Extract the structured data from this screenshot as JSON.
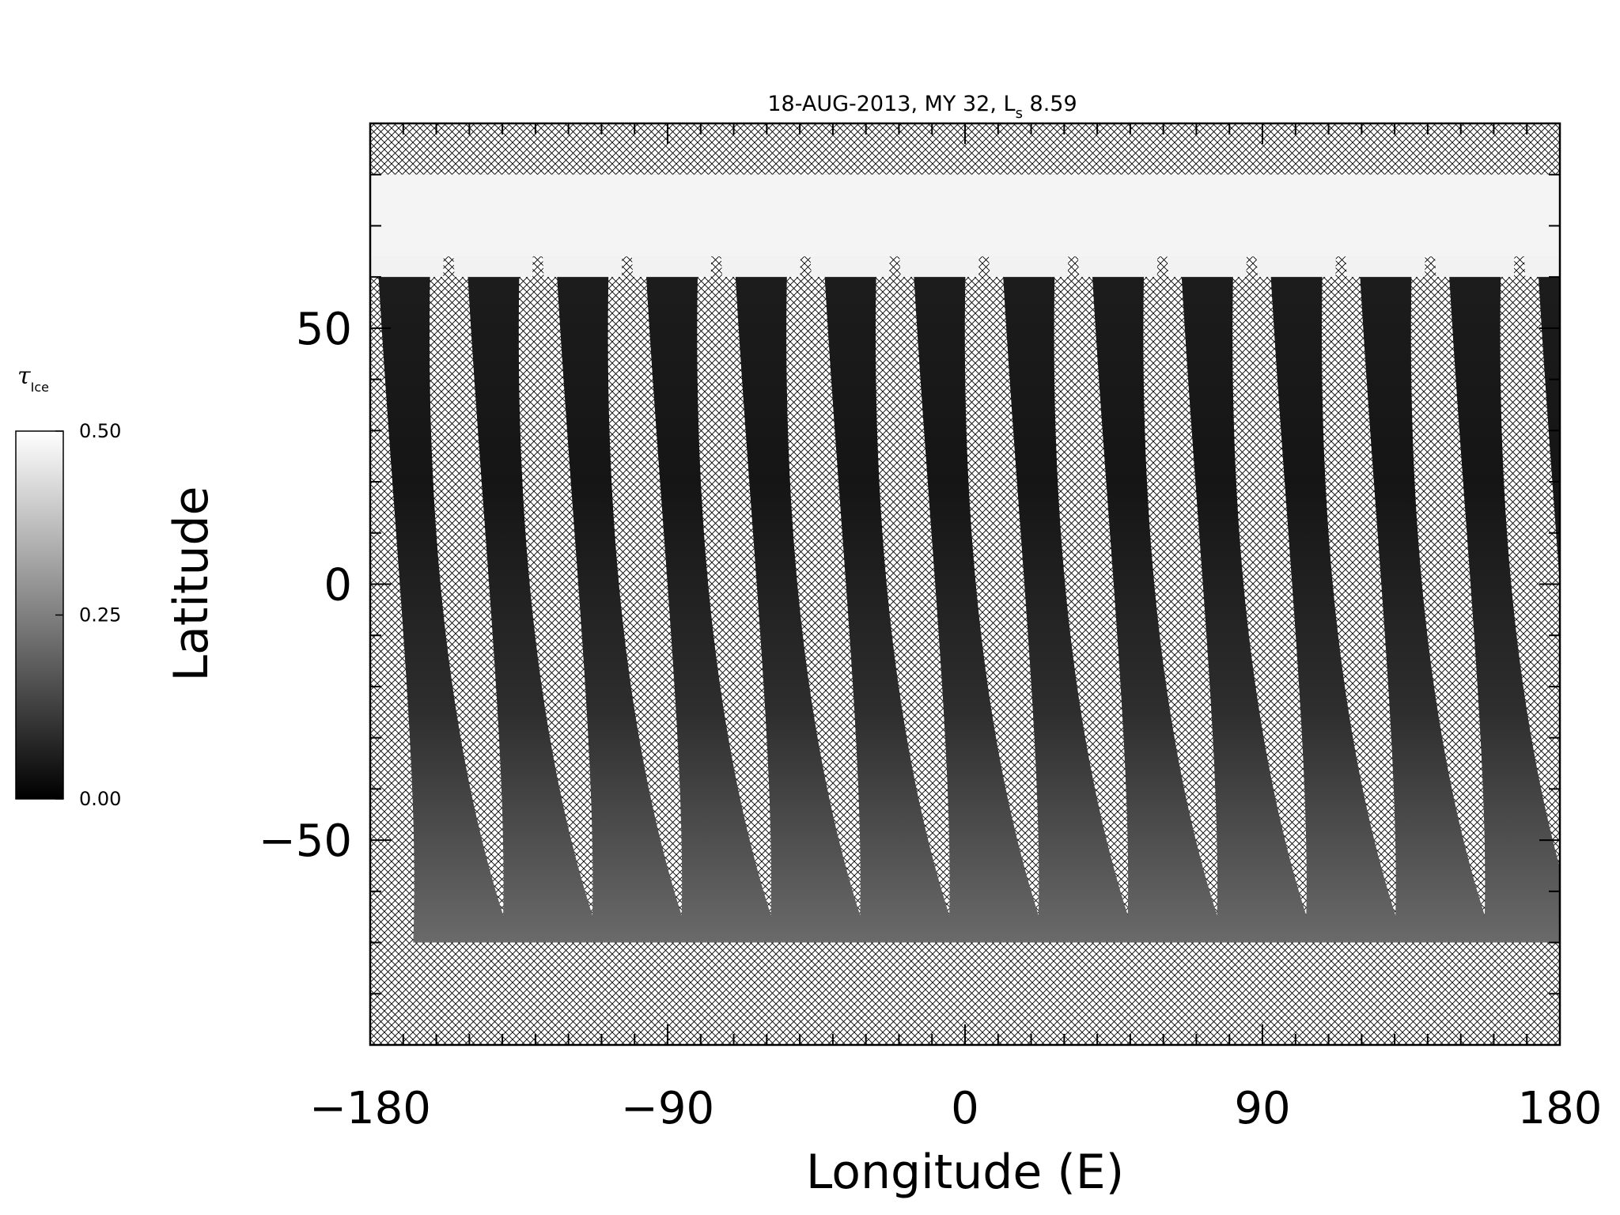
{
  "chart_data": {
    "type": "heatmap",
    "title": {
      "prefix": "18-AUG-2013, MY 32,  L",
      "subscript": "s",
      "suffix": " 8.59"
    },
    "xlabel": "Longitude (E)",
    "ylabel": "Latitude",
    "xlim": [
      -180,
      180
    ],
    "ylim": [
      -90,
      90
    ],
    "x_ticks": [
      -180,
      -90,
      0,
      90,
      180
    ],
    "x_tick_labels": [
      "−180",
      "−90",
      "0",
      "90",
      "180"
    ],
    "y_ticks": [
      -50,
      0,
      50
    ],
    "y_tick_labels": [
      "−50",
      "0",
      "50"
    ],
    "x_minor_step": 10,
    "y_minor_step": 10,
    "no_data_pattern": "crosshatch",
    "colorbar": {
      "label": "τ",
      "label_subscript": "Ice",
      "min": 0.0,
      "max": 0.5,
      "ticks": [
        0.0,
        0.25,
        0.5
      ],
      "tick_labels": [
        "0.00",
        "0.25",
        "0.50"
      ],
      "colormap": "grayscale"
    },
    "swath_data": {
      "description_units": "longitude of swath centre (deg E)",
      "swath_lon_centers": [
        -170,
        -143,
        -116,
        -89,
        -62,
        -35,
        -8,
        19,
        46,
        73,
        100,
        127,
        154,
        181
      ],
      "swath_lat_range": [
        -70,
        80
      ],
      "polar_cap_lat_threshold": 60,
      "polar_cap_tau": 0.5,
      "typical_tau": 0.05
    }
  }
}
